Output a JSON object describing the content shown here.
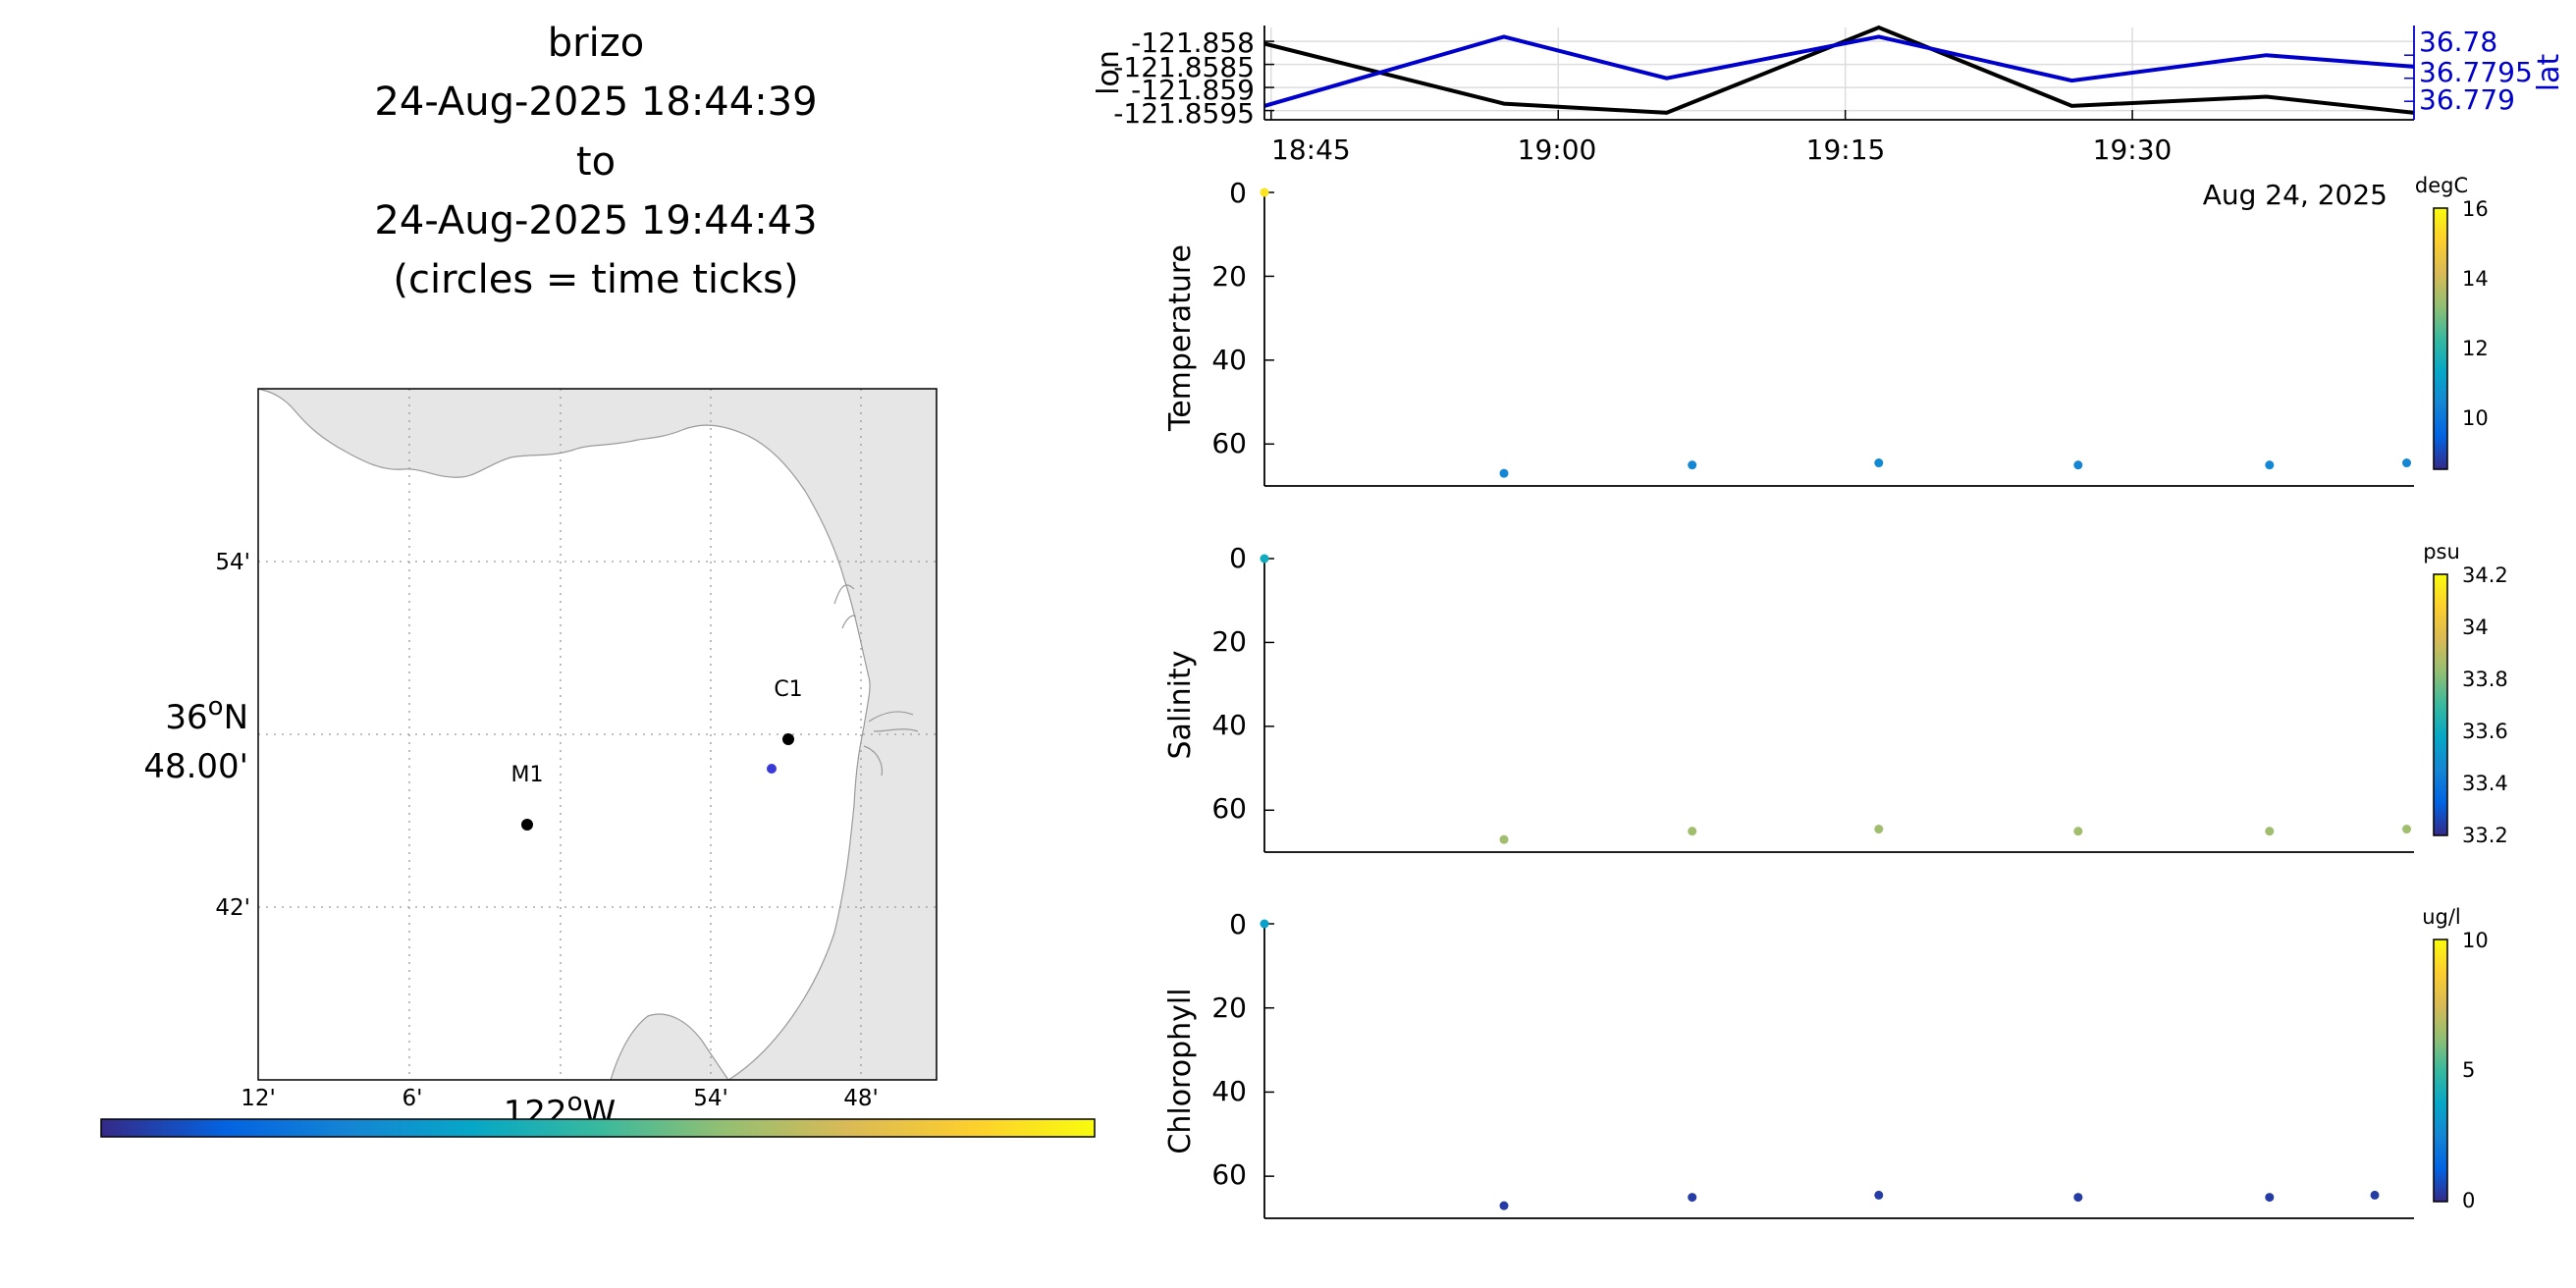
{
  "title": {
    "lines": [
      "brizo",
      "24-Aug-2025 18:44:39",
      "to",
      "24-Aug-2025 19:44:43",
      "(circles = time ticks)"
    ]
  },
  "colors": {
    "lon_line": "#000000",
    "lat_line": "#0000cc",
    "land": "#e6e6e6",
    "grid": "#cccccc",
    "parula": [
      "#352a87",
      "#0363e1",
      "#1485d4",
      "#06a7c6",
      "#38b99e",
      "#92bf73",
      "#d9ba56",
      "#fcce2e",
      "#f9fb0e"
    ]
  },
  "map": {
    "lat_ticks": [
      "54'",
      "36°N",
      "48.00'",
      "42'"
    ],
    "lat_center_deg": "36",
    "lat_center_dir": "N",
    "lon_ticks": [
      "12'",
      "6'",
      "54'",
      "48'"
    ],
    "lon_center_deg": "122",
    "lon_center_dir": "W",
    "stations": [
      {
        "name": "M1",
        "lon": -122.03,
        "lat": 36.747
      },
      {
        "name": "C1",
        "lon": -121.847,
        "lat": 36.797
      }
    ],
    "track_point": {
      "lon": -121.858,
      "lat": 36.779
    }
  },
  "chart_data": [
    {
      "type": "line",
      "title": "",
      "xlabel": "",
      "x_ticks": [
        "18:45",
        "19:00",
        "19:15",
        "19:30"
      ],
      "x_date_label": "Aug 24, 2025",
      "ylabel_left": "lon",
      "ylabel_right": "lat",
      "y_ticks_left": [
        "-121.858",
        "-121.8585",
        "-121.859",
        "-121.8595"
      ],
      "y_ticks_right": [
        "36.78",
        "36.7795",
        "36.779"
      ],
      "ylim_left": [
        -121.8597,
        -121.8577
      ],
      "ylim_right": [
        36.7786,
        36.7806
      ],
      "x": [
        "18:44:39",
        "18:57:10",
        "19:05:40",
        "19:16:45",
        "19:26:50",
        "19:37:00",
        "19:44:43"
      ],
      "series": [
        {
          "name": "lon",
          "axis": "left",
          "values": [
            -121.85805,
            -121.85935,
            -121.85955,
            -121.8577,
            -121.8594,
            -121.8592,
            -121.85955
          ]
        },
        {
          "name": "lat",
          "axis": "right",
          "values": [
            36.7789,
            36.7804,
            36.7795,
            36.7804,
            36.77945,
            36.78,
            36.77975
          ]
        }
      ],
      "grid": true
    },
    {
      "type": "scatter",
      "ylabel": "Temperature",
      "y_ticks": [
        "0",
        "20",
        "40",
        "60"
      ],
      "ylim": [
        0,
        70
      ],
      "y_reversed": true,
      "colorbar": {
        "unit": "degC",
        "ticks": [
          "16",
          "14",
          "12",
          "10"
        ],
        "range": [
          8.5,
          16
        ]
      },
      "points": [
        {
          "t": "18:44:39",
          "depth": 0,
          "value": 15.5
        },
        {
          "t": "18:57:10",
          "depth": 67,
          "value": 10.4
        },
        {
          "t": "19:07:00",
          "depth": 65,
          "value": 10.4
        },
        {
          "t": "19:16:45",
          "depth": 64.5,
          "value": 10.5
        },
        {
          "t": "19:27:10",
          "depth": 65,
          "value": 10.4
        },
        {
          "t": "19:37:10",
          "depth": 65,
          "value": 10.4
        },
        {
          "t": "19:44:20",
          "depth": 64.5,
          "value": 10.4
        }
      ]
    },
    {
      "type": "scatter",
      "ylabel": "Salinity",
      "y_ticks": [
        "0",
        "20",
        "40",
        "60"
      ],
      "ylim": [
        0,
        70
      ],
      "y_reversed": true,
      "colorbar": {
        "unit": "psu",
        "ticks": [
          "34.2",
          "34",
          "33.8",
          "33.6",
          "33.4",
          "33.2"
        ],
        "range": [
          33.2,
          34.2
        ]
      },
      "points": [
        {
          "t": "18:44:39",
          "depth": 0,
          "value": 33.6
        },
        {
          "t": "18:57:10",
          "depth": 67,
          "value": 33.85
        },
        {
          "t": "19:07:00",
          "depth": 65,
          "value": 33.85
        },
        {
          "t": "19:16:45",
          "depth": 64.5,
          "value": 33.85
        },
        {
          "t": "19:27:10",
          "depth": 65,
          "value": 33.85
        },
        {
          "t": "19:37:10",
          "depth": 65,
          "value": 33.85
        },
        {
          "t": "19:44:20",
          "depth": 64.5,
          "value": 33.85
        }
      ]
    },
    {
      "type": "scatter",
      "ylabel": "Chlorophyll",
      "y_ticks": [
        "0",
        "20",
        "40",
        "60"
      ],
      "ylim": [
        0,
        70
      ],
      "y_reversed": true,
      "colorbar": {
        "unit": "ug/l",
        "ticks": [
          "10",
          "5",
          "0"
        ],
        "range": [
          0,
          10
        ]
      },
      "points": [
        {
          "t": "18:44:39",
          "depth": 0,
          "value": 3.5
        },
        {
          "t": "18:57:10",
          "depth": 67,
          "value": 0.4
        },
        {
          "t": "19:07:00",
          "depth": 65,
          "value": 0.4
        },
        {
          "t": "19:16:45",
          "depth": 64.5,
          "value": 0.4
        },
        {
          "t": "19:27:10",
          "depth": 65,
          "value": 0.4
        },
        {
          "t": "19:37:10",
          "depth": 65,
          "value": 0.4
        },
        {
          "t": "19:42:40",
          "depth": 64.5,
          "value": 0.4
        }
      ]
    }
  ]
}
